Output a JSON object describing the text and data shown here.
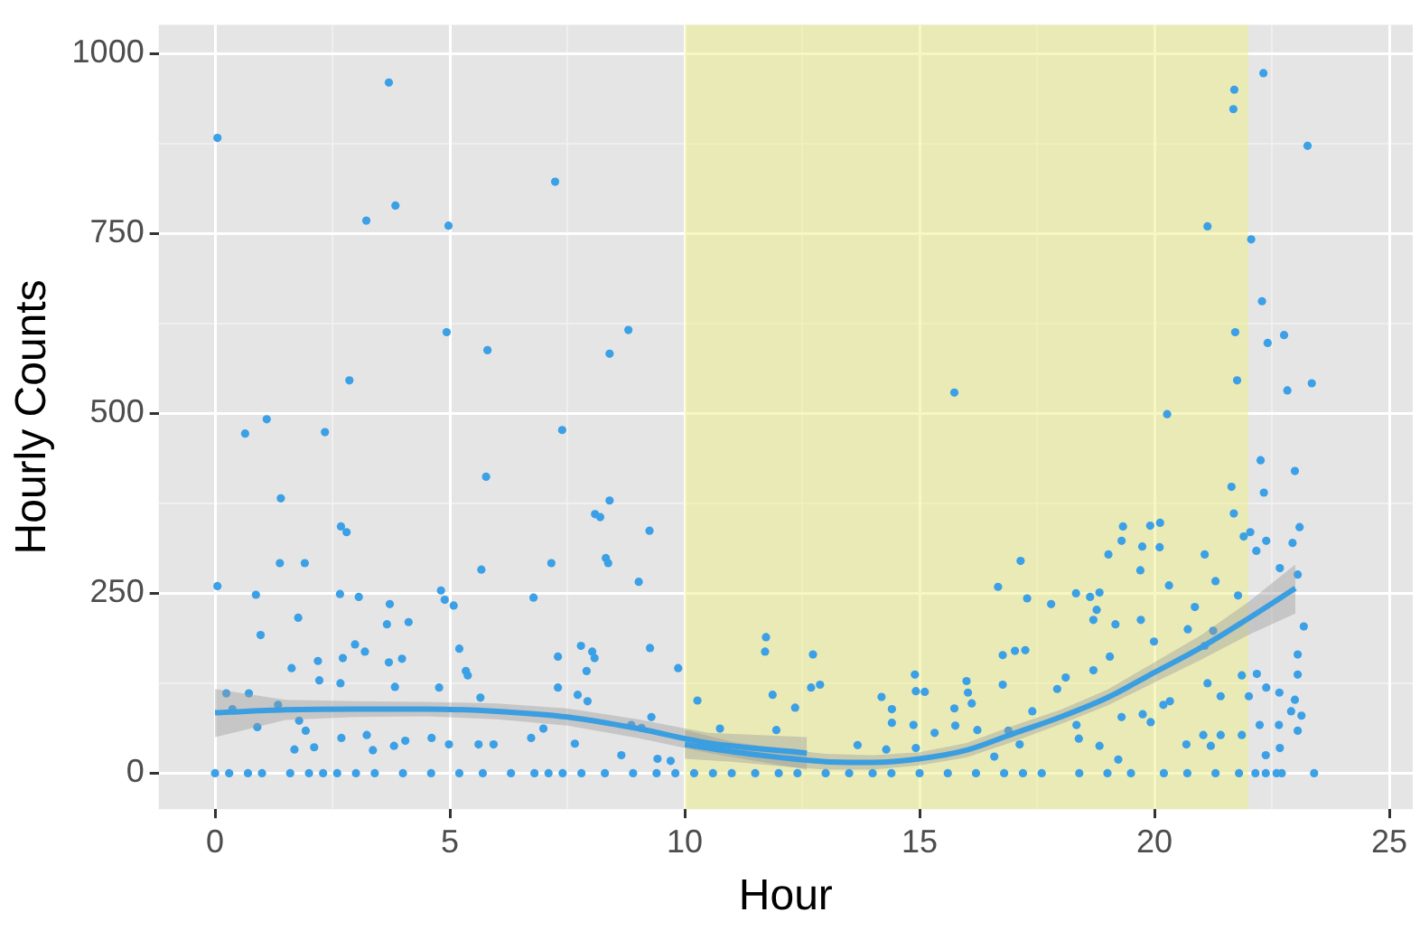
{
  "chart_data": {
    "type": "scatter",
    "xlabel": "Hour",
    "ylabel": "Hourly Counts",
    "xlim": [
      -1.2,
      25.5
    ],
    "ylim": [
      -50,
      1040
    ],
    "xticks": [
      0,
      5,
      10,
      15,
      20,
      25
    ],
    "yticks": [
      0,
      250,
      500,
      750,
      1000
    ],
    "grid": true,
    "legend": false,
    "bands": [
      {
        "axis": "x",
        "from": 10,
        "to": 22,
        "color": "#f0f08a"
      }
    ],
    "series": [
      {
        "marker": "circle",
        "color": "#3ba0e6",
        "x": [
          0.05,
          3.7,
          3.22,
          3.84,
          4.97,
          7.24,
          4.93,
          5.8,
          8.4,
          8.8,
          2.86,
          1.1,
          0.64,
          2.34,
          7.39,
          22.32,
          21.7,
          21.68,
          23.26,
          21.13,
          22.06,
          22.29,
          21.72,
          22.76,
          22.41,
          21.76,
          23.35,
          22.83,
          15.74,
          20.27,
          0.05,
          1.4,
          0.87,
          0.97,
          1.38,
          1.91,
          1.77,
          1.63,
          2.19,
          2.22,
          2.68,
          2.8,
          2.66,
          3.06,
          2.72,
          2.67,
          2.98,
          3.19,
          3.72,
          3.66,
          3.7,
          3.98,
          4.12,
          3.83,
          4.81,
          4.89,
          5.08,
          5.2,
          5.34,
          5.38,
          4.77,
          5.77,
          5.67,
          5.65,
          6.78,
          7.16,
          7.3,
          7.3,
          7.79,
          8.03,
          8.08,
          7.91,
          7.72,
          7.93,
          8.09,
          8.2,
          8.4,
          8.32,
          8.37,
          9.25,
          9.02,
          9.26,
          9.86,
          9.29,
          8.86,
          10.27,
          11.73,
          11.71,
          11.87,
          10.75,
          11.95,
          0.24,
          0.72,
          0.37,
          1.34,
          0.9,
          1.79,
          1.93,
          1.69,
          2.11,
          2.69,
          3.23,
          3.36,
          3.81,
          4.05,
          4.61,
          4.98,
          5.61,
          5.93,
          6.73,
          6.99,
          7.66,
          8.65,
          9.08,
          9.42,
          9.7,
          0,
          0.3,
          0.7,
          1,
          1.6,
          2,
          2.3,
          2.6,
          3,
          3.4,
          4,
          4.6,
          5.2,
          5.7,
          6.3,
          6.8,
          7.1,
          7.4,
          7.8,
          8.3,
          8.9,
          9.4,
          9.8,
          21.64,
          21.69,
          21.9,
          22.04,
          22.26,
          22.33,
          22.99,
          23.09,
          22.94,
          22.38,
          22.17,
          22.67,
          23.05,
          23.18,
          23.05,
          23.05,
          22.18,
          22.38,
          22.66,
          22.99,
          22.91,
          23.13,
          23.05,
          22.24,
          22.65,
          22.67,
          22.37,
          22.15,
          22.37,
          22.6,
          22.71,
          23.4,
          19.33,
          19.91,
          20.12,
          19.3,
          19.74,
          20.11,
          19.02,
          19.7,
          21.07,
          21.3,
          21.78,
          20.31,
          20.86,
          17.15,
          16.67,
          17.29,
          17.8,
          18.33,
          18.63,
          18.83,
          18.77,
          18.7,
          19.17,
          19.71,
          19.99,
          20.71,
          21.25,
          21.07,
          16.77,
          17.03,
          17.25,
          19.05,
          18.7,
          18.11,
          17.93,
          16.77,
          16.0,
          16.03,
          14.9,
          14.92,
          15.11,
          14.19,
          14.41,
          12.73,
          12.69,
          12.88,
          12.35,
          14.41,
          14.87,
          15.32,
          15.74,
          16.11,
          15.76,
          16.23,
          16.59,
          16.89,
          17.4,
          17.13,
          18.34,
          18.39,
          18.83,
          19.23,
          19.3,
          19.75,
          19.92,
          20.33,
          20.19,
          20.68,
          21.04,
          21.2,
          21.41,
          21.86,
          21.13,
          21.41,
          22.01,
          21.86,
          13.68,
          14.29,
          14.92,
          10.2,
          10.6,
          11,
          11.5,
          12,
          12.4,
          13,
          13.5,
          14,
          14.4,
          15,
          15.6,
          16.2,
          16.8,
          17.2,
          17.6,
          18.4,
          19,
          19.5,
          20.2,
          20.7,
          21.3,
          21.8
        ],
        "values": [
          883,
          960,
          768,
          789,
          761,
          822,
          613,
          588,
          583,
          616,
          546,
          492,
          472,
          474,
          477,
          973,
          950,
          923,
          872,
          760,
          742,
          656,
          613,
          609,
          598,
          546,
          542,
          532,
          529,
          499,
          260,
          382,
          248,
          192,
          292,
          292,
          216,
          146,
          156,
          129,
          343,
          335,
          249,
          245,
          160,
          125,
          179,
          169,
          235,
          207,
          154,
          159,
          210,
          120,
          254,
          241,
          233,
          173,
          142,
          136,
          119,
          412,
          283,
          105,
          244,
          292,
          162,
          119,
          177,
          169,
          160,
          142,
          109,
          100,
          360,
          356,
          379,
          299,
          292,
          337,
          266,
          174,
          146,
          78,
          67,
          101,
          189,
          169,
          109,
          62,
          60,
          111,
          111,
          89,
          95,
          64,
          73,
          59,
          33,
          36,
          49,
          53,
          32,
          38,
          45,
          49,
          40,
          40,
          40,
          49,
          62,
          41,
          25,
          63,
          20,
          17,
          0,
          0,
          0,
          0,
          0,
          0,
          0,
          0,
          0,
          0,
          0,
          0,
          0,
          0,
          0,
          0,
          0,
          0,
          0,
          0,
          0,
          0,
          0,
          398,
          361,
          329,
          335,
          435,
          390,
          420,
          342,
          320,
          323,
          309,
          285,
          276,
          204,
          165,
          137,
          138,
          119,
          112,
          102,
          86,
          80,
          59,
          67,
          67,
          35,
          25,
          0,
          0,
          0,
          0,
          0,
          343,
          344,
          348,
          323,
          315,
          314,
          304,
          282,
          304,
          267,
          247,
          261,
          231,
          295,
          259,
          243,
          235,
          250,
          245,
          251,
          227,
          213,
          207,
          213,
          183,
          200,
          198,
          177,
          164,
          170,
          171,
          162,
          143,
          133,
          117,
          123,
          128,
          112,
          137,
          114,
          113,
          106,
          89,
          165,
          119,
          123,
          91,
          70,
          67,
          56,
          90,
          97,
          66,
          60,
          23,
          59,
          86,
          40,
          67,
          48,
          38,
          19,
          78,
          82,
          71,
          100,
          95,
          40,
          53,
          38,
          53,
          53,
          125,
          107,
          107,
          136,
          39,
          33,
          35,
          0,
          0,
          0,
          0,
          0,
          0,
          0,
          0,
          0,
          0,
          0,
          0,
          0,
          0,
          0,
          0,
          0,
          0,
          0,
          0,
          0,
          0,
          0
        ]
      },
      {
        "type": "line",
        "marker": "none",
        "color": "#3a9ee0",
        "x": [
          0,
          1.5,
          3,
          4.5,
          6,
          7.5,
          9,
          10.5,
          12.6
        ],
        "values": [
          84,
          88,
          89,
          89,
          86,
          78,
          62,
          42,
          28
        ],
        "lower": [
          50,
          74,
          78,
          79,
          75,
          66,
          49,
          28,
          5
        ],
        "upper": [
          117,
          102,
          100,
          99,
          97,
          90,
          75,
          56,
          50
        ]
      },
      {
        "type": "line",
        "marker": "none",
        "color": "#3a9ee0",
        "x": [
          10,
          11,
          12,
          13,
          14,
          15,
          16,
          17,
          18,
          19,
          20,
          21,
          22,
          23
        ],
        "values": [
          40,
          30,
          22,
          16,
          15,
          20,
          32,
          55,
          78,
          105,
          140,
          175,
          215,
          257
        ],
        "lower": [
          20,
          16,
          10,
          5,
          5,
          11,
          22,
          44,
          68,
          94,
          126,
          158,
          192,
          222
        ],
        "upper": [
          60,
          44,
          34,
          27,
          25,
          29,
          42,
          66,
          88,
          116,
          154,
          192,
          238,
          290
        ]
      }
    ]
  }
}
